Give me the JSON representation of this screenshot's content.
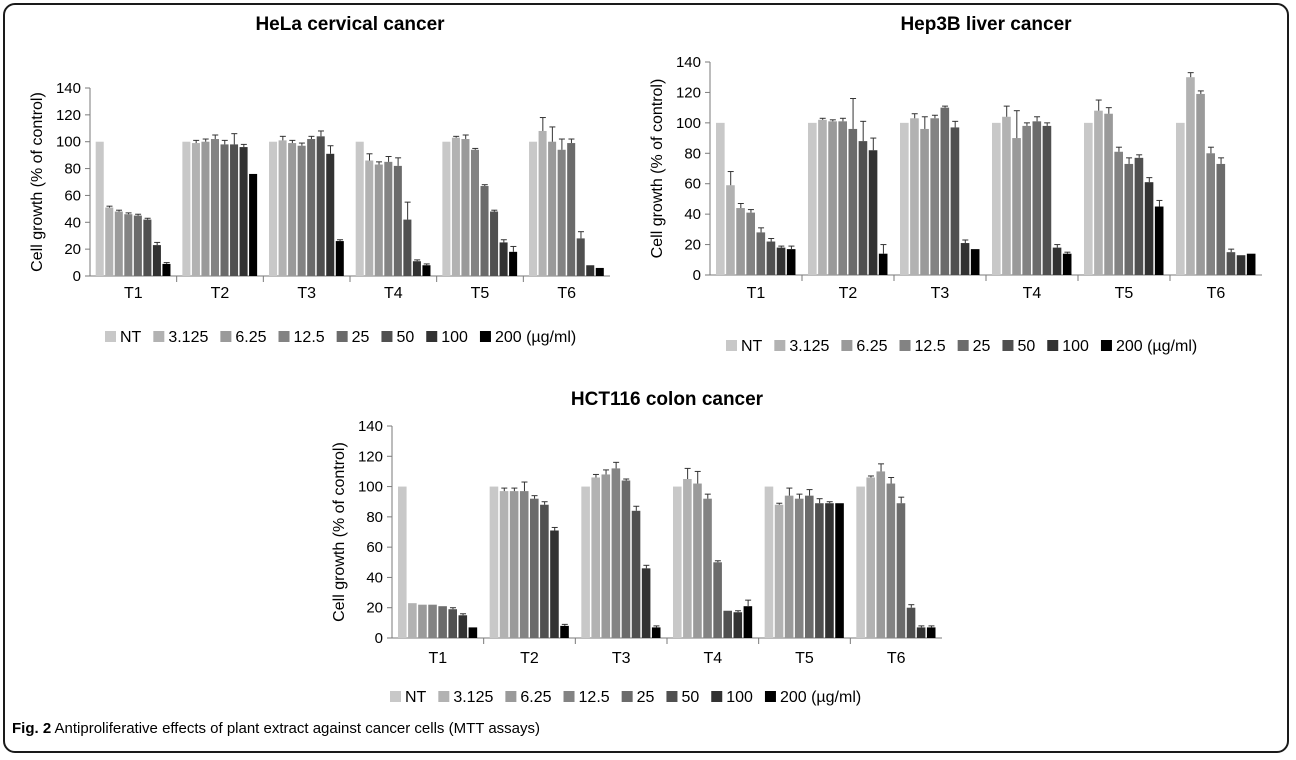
{
  "legend": {
    "labels": [
      "NT",
      "3.125",
      "6.25",
      "12.5",
      "25",
      "50",
      "100",
      "200 (µg/ml)"
    ],
    "colors": [
      "#c8c8c8",
      "#b2b2b2",
      "#9a9a9a",
      "#838383",
      "#6b6b6b",
      "#505050",
      "#323232",
      "#000000"
    ]
  },
  "chart_data": [
    {
      "type": "bar",
      "title": "HeLa cervical cancer",
      "ylabel": "Cell growth (% of control)",
      "ylim": [
        0,
        140
      ],
      "yticks": [
        0,
        20,
        40,
        60,
        80,
        100,
        120,
        140
      ],
      "categories": [
        "T1",
        "T2",
        "T3",
        "T4",
        "T5",
        "T6"
      ],
      "series_names": [
        "NT",
        "3.125",
        "6.25",
        "12.5",
        "25",
        "50",
        "100",
        "200 (µg/ml)"
      ],
      "values": [
        [
          100,
          51,
          48,
          46,
          45,
          42,
          23,
          9
        ],
        [
          100,
          99,
          100,
          102,
          98,
          98,
          96,
          76
        ],
        [
          100,
          101,
          99,
          97,
          102,
          104,
          91,
          26
        ],
        [
          100,
          86,
          83,
          85,
          82,
          42,
          11,
          8
        ],
        [
          100,
          103,
          102,
          94,
          67,
          48,
          25,
          18
        ],
        [
          100,
          108,
          100,
          94,
          99,
          28,
          8,
          6
        ]
      ],
      "errors": [
        [
          0,
          1,
          1,
          1,
          1,
          1,
          2,
          1
        ],
        [
          0,
          2,
          2,
          3,
          3,
          8,
          2,
          0
        ],
        [
          0,
          3,
          2,
          2,
          2,
          4,
          6,
          1
        ],
        [
          0,
          5,
          2,
          4,
          6,
          13,
          1,
          1
        ],
        [
          0,
          1,
          3,
          1,
          1,
          1,
          2,
          4
        ],
        [
          0,
          10,
          11,
          8,
          3,
          5,
          0,
          0
        ]
      ]
    },
    {
      "type": "bar",
      "title": "Hep3B liver cancer",
      "ylabel": "Cell growth (% of control)",
      "ylim": [
        0,
        140
      ],
      "yticks": [
        0,
        20,
        40,
        60,
        80,
        100,
        120,
        140
      ],
      "categories": [
        "T1",
        "T2",
        "T3",
        "T4",
        "T5",
        "T6"
      ],
      "series_names": [
        "NT",
        "3.125",
        "6.25",
        "12.5",
        "25",
        "50",
        "100",
        "200 (µg/ml)"
      ],
      "values": [
        [
          100,
          59,
          44,
          41,
          28,
          22,
          18,
          17
        ],
        [
          100,
          102,
          101,
          101,
          96,
          88,
          82,
          14
        ],
        [
          100,
          103,
          96,
          103,
          110,
          97,
          21,
          17
        ],
        [
          100,
          104,
          90,
          98,
          101,
          98,
          18,
          14
        ],
        [
          100,
          108,
          106,
          81,
          73,
          77,
          61,
          45
        ],
        [
          100,
          130,
          119,
          80,
          73,
          15,
          13,
          14
        ]
      ],
      "errors": [
        [
          0,
          9,
          3,
          2,
          3,
          2,
          1,
          2
        ],
        [
          0,
          1,
          1,
          2,
          20,
          13,
          8,
          6
        ],
        [
          0,
          3,
          8,
          2,
          1,
          4,
          2,
          0
        ],
        [
          0,
          7,
          18,
          2,
          3,
          2,
          2,
          1
        ],
        [
          0,
          7,
          4,
          3,
          4,
          2,
          3,
          4
        ],
        [
          0,
          3,
          2,
          4,
          4,
          2,
          0,
          0
        ]
      ]
    },
    {
      "type": "bar",
      "title": "HCT116 colon cancer",
      "ylabel": "Cell growth (% of control)",
      "ylim": [
        0,
        140
      ],
      "yticks": [
        0,
        20,
        40,
        60,
        80,
        100,
        120,
        140
      ],
      "categories": [
        "T1",
        "T2",
        "T3",
        "T4",
        "T5",
        "T6"
      ],
      "series_names": [
        "NT",
        "3.125",
        "6.25",
        "12.5",
        "25",
        "50",
        "100",
        "200 (µg/ml)"
      ],
      "values": [
        [
          100,
          23,
          22,
          22,
          21,
          19,
          15,
          7
        ],
        [
          100,
          97,
          97,
          97,
          92,
          88,
          71,
          8
        ],
        [
          100,
          106,
          108,
          112,
          104,
          84,
          46,
          7
        ],
        [
          100,
          105,
          102,
          92,
          50,
          18,
          17,
          21
        ],
        [
          100,
          88,
          94,
          92,
          94,
          89,
          89,
          89
        ],
        [
          100,
          106,
          110,
          102,
          89,
          20,
          7,
          7
        ]
      ],
      "errors": [
        [
          0,
          0,
          0,
          0,
          0,
          1,
          1,
          0
        ],
        [
          0,
          2,
          2,
          6,
          2,
          2,
          2,
          1
        ],
        [
          0,
          2,
          3,
          4,
          1,
          3,
          2,
          1
        ],
        [
          0,
          7,
          8,
          3,
          1,
          0,
          1,
          4
        ],
        [
          0,
          1,
          5,
          3,
          4,
          3,
          1,
          0
        ],
        [
          0,
          1,
          5,
          4,
          4,
          2,
          1,
          1
        ]
      ]
    }
  ],
  "caption": {
    "label": "Fig. 2",
    "text": "Antiproliferative effects of plant extract against cancer cells (MTT assays)"
  }
}
